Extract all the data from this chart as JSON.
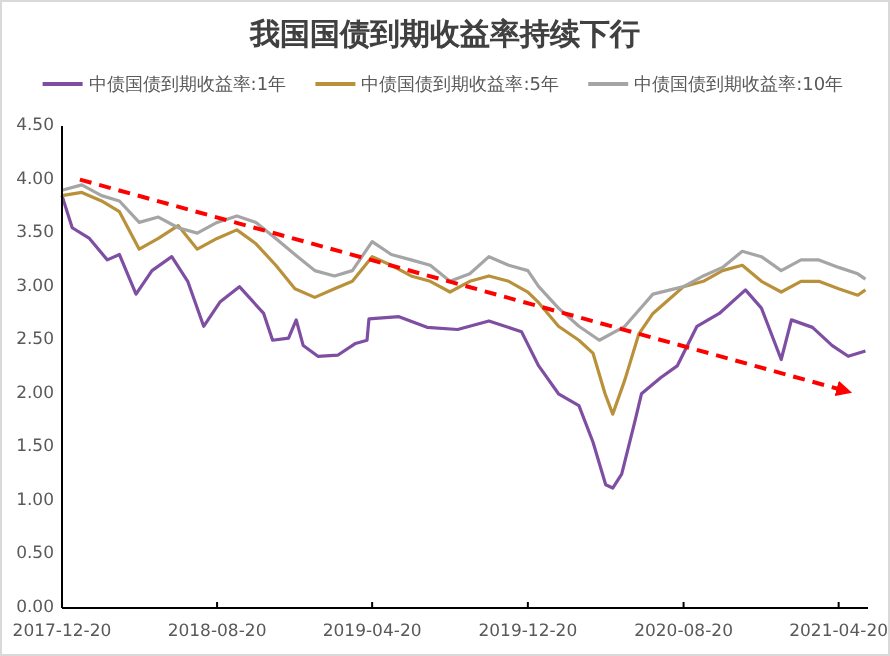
{
  "chart_data": {
    "type": "line",
    "title": "我国国债到期收益率持续下行",
    "legend": "top",
    "grid": false,
    "marker": "none",
    "line_style": "solid",
    "xlim": [
      "2017-12-20",
      "2021-06-05"
    ],
    "xticks": [
      "2017-12-20",
      "2018-08-20",
      "2019-04-20",
      "2019-12-20",
      "2020-08-20",
      "2021-04-20"
    ],
    "ylim": [
      0,
      4.5
    ],
    "yticks": [
      {
        "value": 0,
        "label": "0.00"
      },
      {
        "value": 0.5,
        "label": "0.50"
      },
      {
        "value": 1,
        "label": "1.00"
      },
      {
        "value": 1.5,
        "label": "1.50"
      },
      {
        "value": 2,
        "label": "2.00"
      },
      {
        "value": 2.5,
        "label": "2.50"
      },
      {
        "value": 3,
        "label": "3.00"
      },
      {
        "value": 3.5,
        "label": "3.50"
      },
      {
        "value": 4,
        "label": "4.00"
      },
      {
        "value": 4.5,
        "label": "4.50"
      }
    ],
    "series": [
      {
        "name": "中债国债到期收益率:1年",
        "color": "#7e4ea3",
        "x": [
          "2017-12-20",
          "2018-01-05",
          "2018-02-01",
          "2018-03-01",
          "2018-03-20",
          "2018-04-15",
          "2018-05-10",
          "2018-06-10",
          "2018-07-05",
          "2018-07-30",
          "2018-08-25",
          "2018-09-24",
          "2018-11-01",
          "2018-11-15",
          "2018-12-10",
          "2018-12-22",
          "2019-01-02",
          "2019-01-25",
          "2019-02-25",
          "2019-03-25",
          "2019-04-12",
          "2019-04-15",
          "2019-06-01",
          "2019-07-15",
          "2019-09-01",
          "2019-10-20",
          "2019-12-10",
          "2020-01-06",
          "2020-02-06",
          "2020-03-09",
          "2020-03-31",
          "2020-04-20",
          "2020-05-01",
          "2020-05-15",
          "2020-06-05",
          "2020-06-15",
          "2020-07-15",
          "2020-08-10",
          "2020-09-10",
          "2020-10-15",
          "2020-11-25",
          "2020-12-20",
          "2021-01-20",
          "2021-02-05",
          "2021-03-10",
          "2021-04-10",
          "2021-05-05",
          "2021-06-01"
        ],
        "values": [
          3.85,
          3.55,
          3.45,
          3.25,
          3.3,
          2.93,
          3.15,
          3.28,
          3.05,
          2.63,
          2.86,
          3.0,
          2.75,
          2.5,
          2.52,
          2.69,
          2.45,
          2.35,
          2.36,
          2.47,
          2.5,
          2.7,
          2.72,
          2.62,
          2.6,
          2.68,
          2.58,
          2.26,
          2.0,
          1.89,
          1.55,
          1.15,
          1.12,
          1.25,
          1.75,
          2.0,
          2.15,
          2.26,
          2.63,
          2.75,
          2.97,
          2.8,
          2.32,
          2.69,
          2.62,
          2.45,
          2.35,
          2.4
        ]
      },
      {
        "name": "中债国债到期收益率:5年",
        "color": "#b8913a",
        "x": [
          "2017-12-20",
          "2018-01-20",
          "2018-02-20",
          "2018-03-20",
          "2018-04-20",
          "2018-05-20",
          "2018-06-20",
          "2018-07-20",
          "2018-08-20",
          "2018-09-20",
          "2018-10-20",
          "2018-11-20",
          "2018-12-20",
          "2019-01-20",
          "2019-02-20",
          "2019-03-20",
          "2019-04-20",
          "2019-05-20",
          "2019-06-20",
          "2019-07-20",
          "2019-08-20",
          "2019-09-20",
          "2019-10-20",
          "2019-11-20",
          "2019-12-20",
          "2020-01-06",
          "2020-02-06",
          "2020-03-09",
          "2020-03-31",
          "2020-04-19",
          "2020-05-01",
          "2020-05-20",
          "2020-06-11",
          "2020-07-03",
          "2020-07-28",
          "2020-08-20",
          "2020-09-20",
          "2020-10-20",
          "2020-11-20",
          "2020-12-20",
          "2021-01-20",
          "2021-02-20",
          "2021-03-20",
          "2021-04-20",
          "2021-05-20",
          "2021-06-01"
        ],
        "values": [
          3.85,
          3.88,
          3.8,
          3.7,
          3.35,
          3.45,
          3.57,
          3.35,
          3.45,
          3.53,
          3.4,
          3.2,
          2.98,
          2.9,
          2.98,
          3.05,
          3.28,
          3.2,
          3.1,
          3.05,
          2.95,
          3.05,
          3.1,
          3.05,
          2.95,
          2.85,
          2.63,
          2.5,
          2.38,
          2.0,
          1.81,
          2.13,
          2.56,
          2.75,
          2.88,
          3.0,
          3.05,
          3.15,
          3.2,
          3.05,
          2.95,
          3.05,
          3.05,
          2.98,
          2.92,
          2.97
        ]
      },
      {
        "name": "中债国债到期收益率:10年",
        "color": "#a5a5a5",
        "x": [
          "2017-12-20",
          "2018-01-20",
          "2018-02-20",
          "2018-03-20",
          "2018-04-20",
          "2018-05-20",
          "2018-06-20",
          "2018-07-20",
          "2018-08-20",
          "2018-09-20",
          "2018-10-20",
          "2018-11-20",
          "2018-12-20",
          "2019-01-20",
          "2019-02-20",
          "2019-03-20",
          "2019-04-20",
          "2019-05-20",
          "2019-06-20",
          "2019-07-20",
          "2019-08-20",
          "2019-09-20",
          "2019-10-20",
          "2019-11-20",
          "2019-12-20",
          "2020-01-06",
          "2020-02-06",
          "2020-03-09",
          "2020-04-10",
          "2020-05-20",
          "2020-07-03",
          "2020-08-20",
          "2020-09-20",
          "2020-10-20",
          "2020-11-20",
          "2020-12-20",
          "2021-01-20",
          "2021-02-20",
          "2021-03-20",
          "2021-04-20",
          "2021-05-20",
          "2021-06-01"
        ],
        "values": [
          3.9,
          3.95,
          3.85,
          3.8,
          3.6,
          3.65,
          3.55,
          3.5,
          3.6,
          3.66,
          3.6,
          3.45,
          3.3,
          3.15,
          3.1,
          3.15,
          3.42,
          3.3,
          3.25,
          3.2,
          3.05,
          3.12,
          3.28,
          3.2,
          3.15,
          3.0,
          2.8,
          2.63,
          2.5,
          2.63,
          2.93,
          3.0,
          3.1,
          3.18,
          3.33,
          3.28,
          3.15,
          3.25,
          3.25,
          3.18,
          3.12,
          3.07
        ]
      },
      {
        "type": "line",
        "color": "#ff0000",
        "line_style": "dashed",
        "x": [
          "2018-01-17",
          "2021-05-05"
        ],
        "values": [
          4.0,
          2.02
        ]
      }
    ]
  }
}
